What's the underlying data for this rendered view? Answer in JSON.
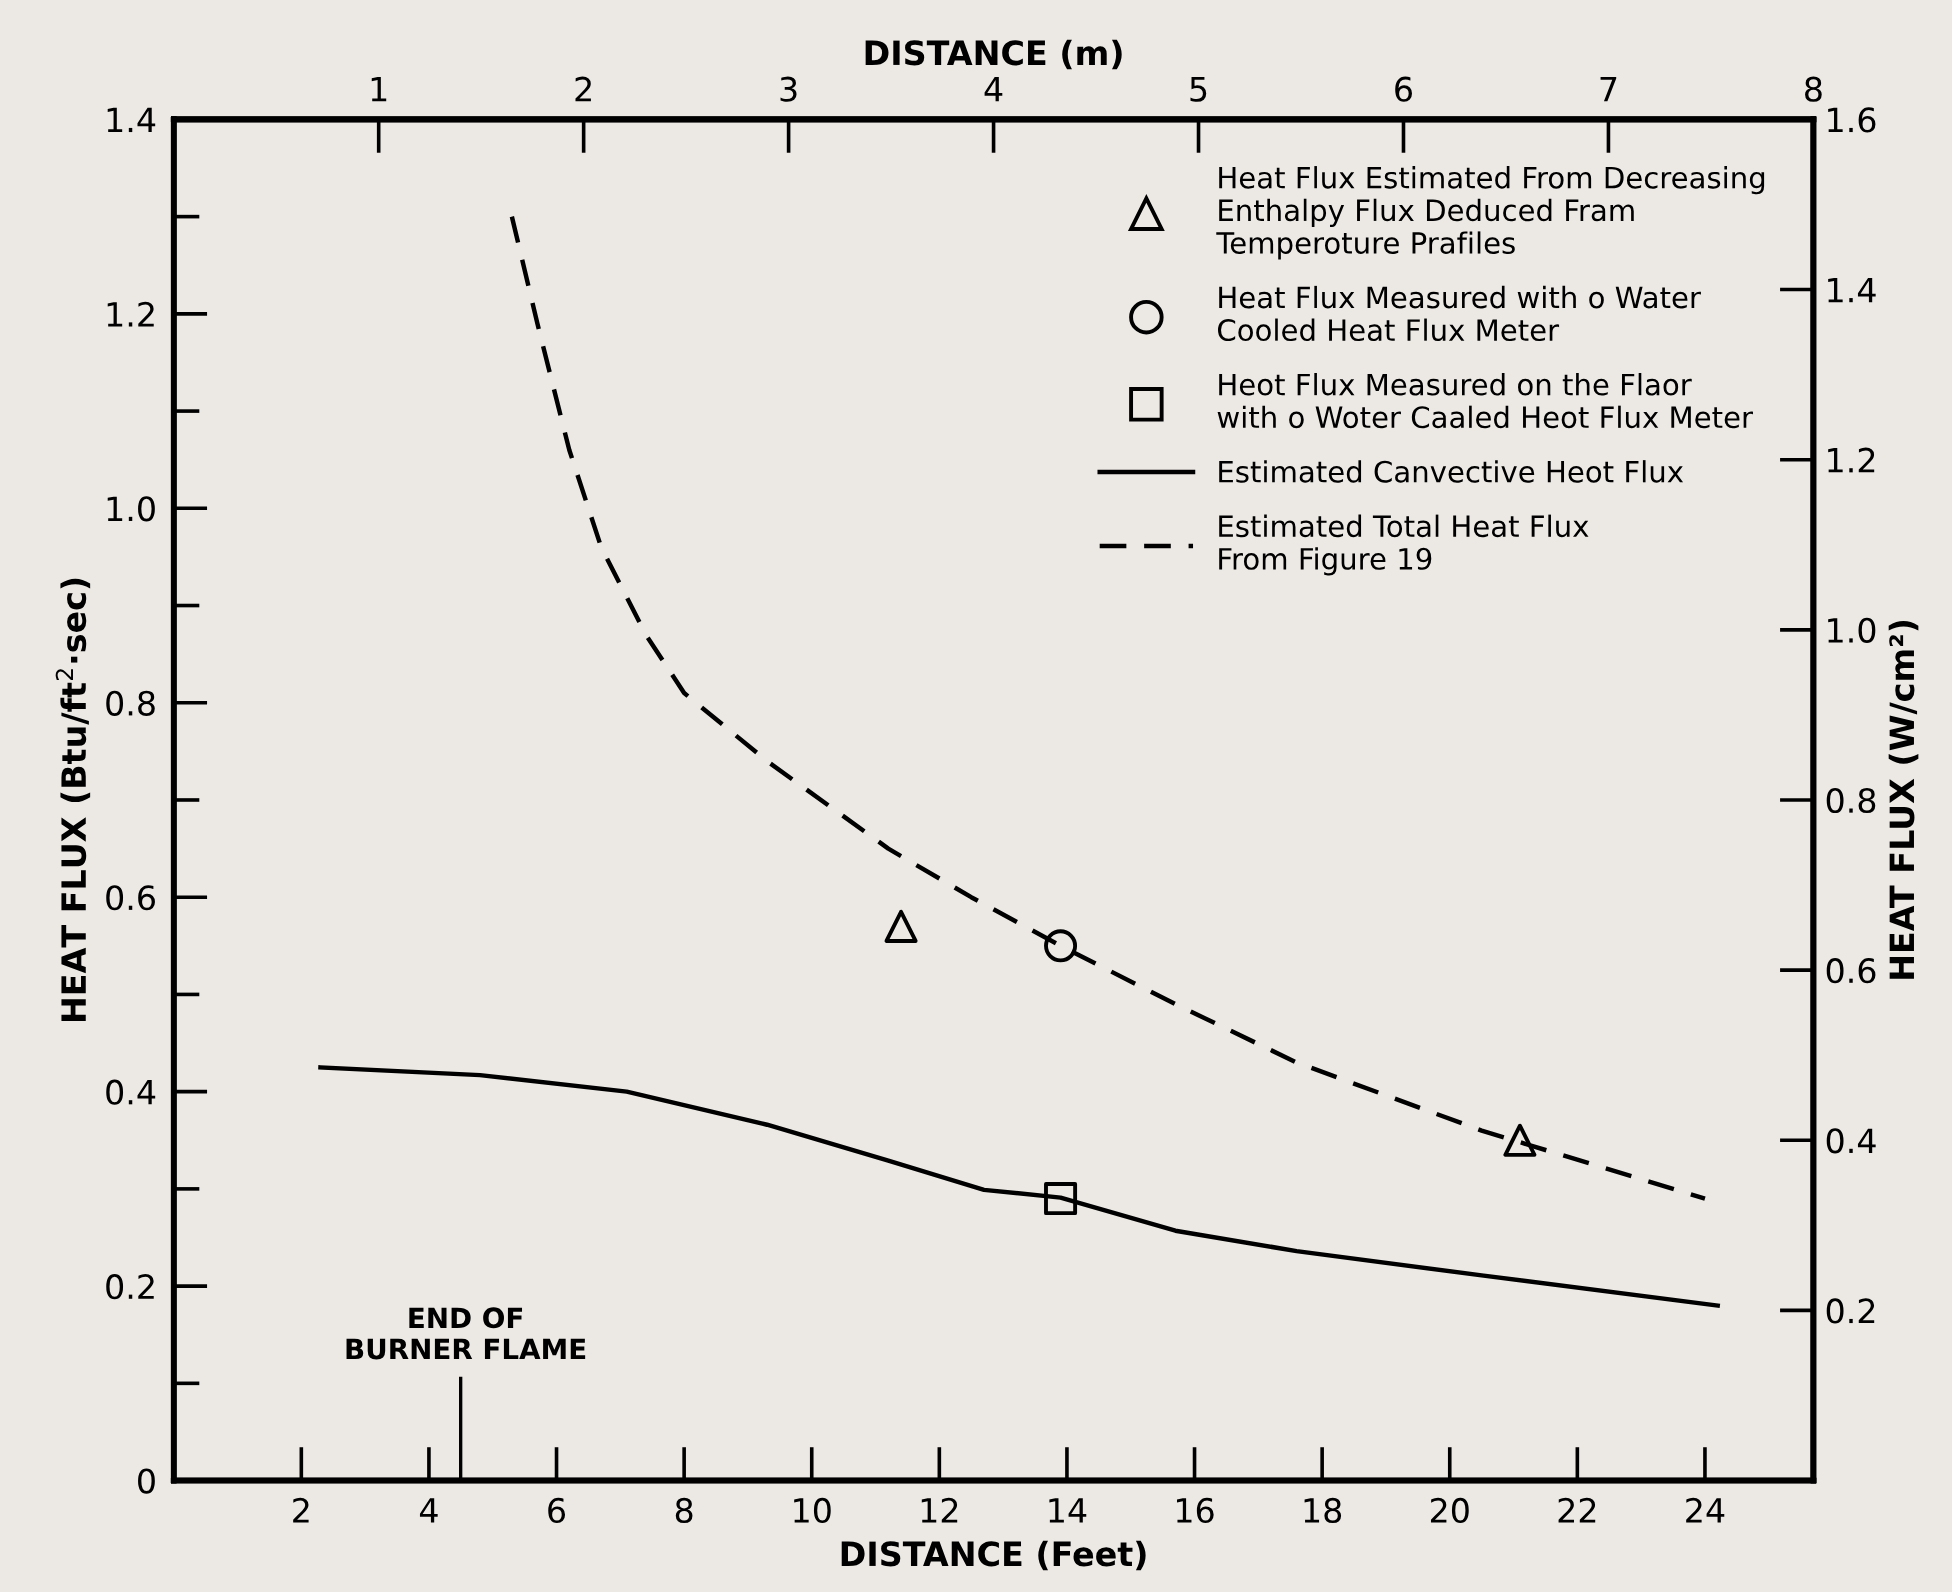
{
  "chart_data": {
    "type": "line",
    "xlabel": "DISTANCE (Feet)",
    "ylabel": "HEAT FLUX (Btu/ft$^{2}$·sec)",
    "x2label": "DISTANCE (m)",
    "y2label": "HEAT FLUX (W/cm²)",
    "xlim": [
      0,
      25.7
    ],
    "xticks": [
      2,
      4,
      6,
      8,
      10,
      12,
      14,
      16,
      18,
      20,
      22,
      24
    ],
    "ylim": [
      0,
      1.4
    ],
    "yticks": [
      0,
      {
        "value": 0.1,
        "label": null
      },
      0.2,
      {
        "value": 0.3,
        "label": null
      },
      0.4,
      {
        "value": 0.5,
        "label": null
      },
      0.6,
      {
        "value": 0.7,
        "label": null
      },
      0.8,
      {
        "value": 0.9,
        "label": null
      },
      {
        "value": 1.0,
        "label": "1.0"
      },
      {
        "value": 1.1,
        "label": null
      },
      1.2,
      {
        "value": 1.3,
        "label": null
      },
      1.4
    ],
    "x2lim": [
      0,
      8
    ],
    "x2ticks": [
      1,
      2,
      3,
      4,
      5,
      6,
      7,
      8
    ],
    "y2lim": [
      0,
      1.6
    ],
    "y2ticks": [
      0.2,
      0.4,
      0.6,
      0.8,
      {
        "value": 1.0,
        "label": "1.0"
      },
      1.2,
      1.4,
      1.6
    ],
    "grid": false,
    "legend": "top right",
    "series": [
      {
        "name": "Heat Flux Estimated From Decreasing\nEnthalpy Flux Deduced Fram\nTemperoture Prafiles",
        "type": "scatter",
        "marker": "triangle",
        "color": "#000000",
        "x": [
          11.4,
          21.1
        ],
        "values": [
          0.57,
          0.35
        ]
      },
      {
        "name": "Heat Flux Measured with o Water\nCooled Heat Flux Meter",
        "type": "scatter",
        "marker": "circle",
        "color": "#000000",
        "x": [
          13.9
        ],
        "values": [
          0.55
        ]
      },
      {
        "name": "Heot Flux Measured on the Flaor\nwith o Woter Caaled Heot Flux Meter",
        "type": "scatter",
        "marker": "square",
        "color": "#000000",
        "x": [
          13.9
        ],
        "values": [
          0.29
        ]
      },
      {
        "name": "Estimated Canvective Heot Flux",
        "line_style": "solid",
        "color": "#000000",
        "x": [
          2.3,
          4.8,
          7.1,
          9.3,
          11.2,
          12.7,
          13.9,
          15.7,
          17.6,
          20.5,
          24.2
        ],
        "values": [
          0.425,
          0.417,
          0.4,
          0.366,
          0.329,
          0.299,
          0.291,
          0.257,
          0.236,
          0.211,
          0.18
        ]
      },
      {
        "name": "Estimated Total Heat Flux\nFrom Figure 19",
        "line_style": "dashed",
        "color": "#000000",
        "x": [
          5.3,
          5.7,
          6.2,
          6.7,
          7.4,
          8.0,
          9.3,
          11.2,
          12.5,
          13.9,
          15.7,
          17.6,
          20.5,
          24.0
        ],
        "values": [
          1.3,
          1.19,
          1.06,
          0.96,
          0.87,
          0.81,
          0.74,
          0.65,
          0.6,
          0.55,
          0.49,
          0.43,
          0.36,
          0.29
        ]
      }
    ],
    "annotations": [
      "END OF\nBURNER FLAME"
    ]
  }
}
